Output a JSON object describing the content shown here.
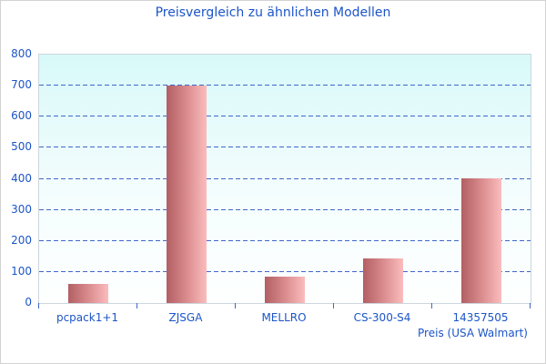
{
  "chart_data": {
    "type": "bar",
    "title": "Preisvergleich zu ähnlichen Modellen",
    "xlabel": "Preis (USA Walmart)",
    "ylabel": "",
    "categories": [
      "pcpack1+1",
      "ZJSGA",
      "MELLRO",
      "CS-300-S4",
      "14357505"
    ],
    "values": [
      62,
      700,
      86,
      143,
      401
    ],
    "ylim": [
      0,
      800
    ],
    "yticks": [
      0,
      100,
      200,
      300,
      400,
      500,
      600,
      700,
      800
    ],
    "grid": "horizontal-dashed",
    "legend_position": "none",
    "colors": {
      "text": "#1c55c8",
      "gridline": "#3f68c9",
      "bar_gradient_left": "#b25f63",
      "bar_gradient_right": "#fbbcbd",
      "plot_bg_top": "#d8f9f9",
      "plot_bg_bottom": "#feffff",
      "plot_border": "#ccd6dd",
      "figure_border": "#d3d3d3",
      "background": "#ffffff"
    }
  }
}
